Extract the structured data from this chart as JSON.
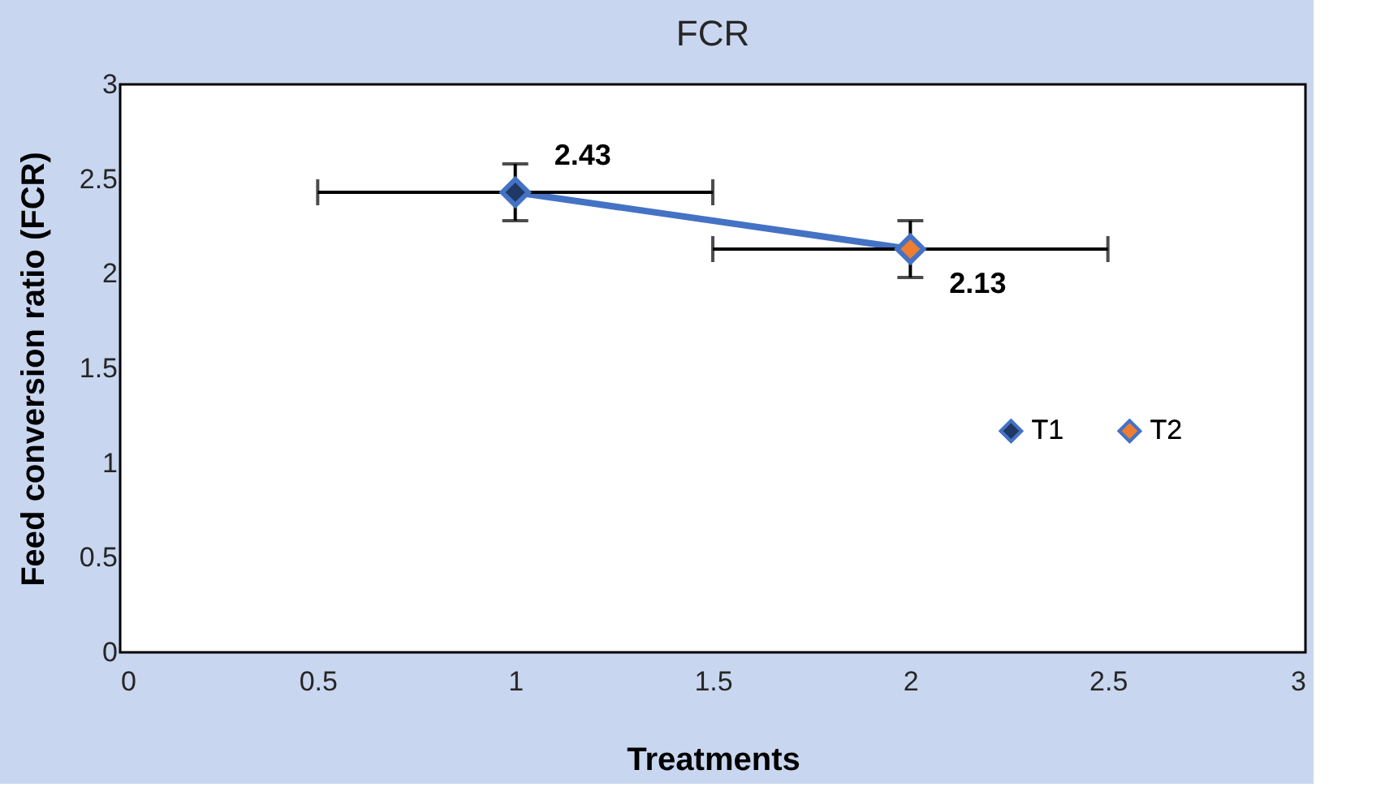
{
  "chart_data": {
    "type": "scatter",
    "title": "FCR",
    "xlabel": "Treatments",
    "ylabel": "Feed conversion ratio (FCR)",
    "x": [
      1,
      2
    ],
    "xlim": [
      0,
      3
    ],
    "xticks": [
      0,
      0.5,
      1,
      1.5,
      2,
      2.5,
      3
    ],
    "ylim": [
      0,
      3
    ],
    "yticks": [
      0,
      0.5,
      1,
      1.5,
      2,
      2.5,
      3
    ],
    "marker": "diamond",
    "grid": false,
    "legend": "right",
    "series": [
      {
        "type": "line",
        "color": "#4472c4",
        "values": [
          2.43,
          2.13
        ],
        "marker": "none"
      },
      {
        "name": "T1",
        "color": "#203864",
        "x": [
          1
        ],
        "values": [
          2.43
        ],
        "value_labels": [
          "2.43"
        ],
        "errors": [
          0.15
        ],
        "xerrors": [
          0.5
        ]
      },
      {
        "name": "T2",
        "color": "#ed7d31",
        "x": [
          2
        ],
        "values": [
          2.13
        ],
        "value_labels": [
          "2.13"
        ],
        "errors": [
          0.15
        ],
        "xerrors": [
          0.5
        ]
      }
    ]
  }
}
